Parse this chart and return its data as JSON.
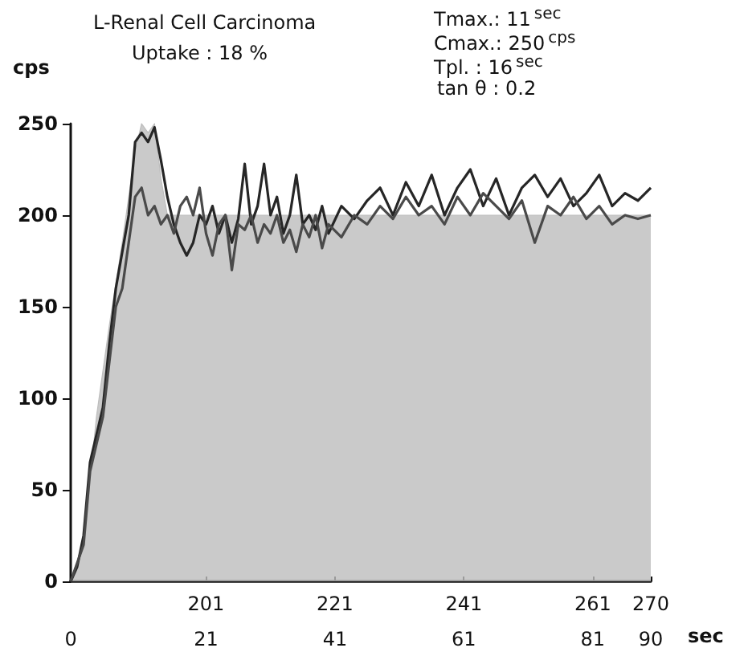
{
  "chart_data": {
    "type": "line",
    "title": "L-Renal Cell Carcinoma",
    "subtitle": "Uptake : 18 %",
    "ylabel": "cps",
    "xlabel": "sec",
    "annotations": [
      "Tmax.: 11$^{sec}$",
      "Cmax.: 250$^{cps}$",
      "Tpl. : 16$^{sec}$",
      "tan θ : 0.2"
    ],
    "xlim": [
      0,
      90
    ],
    "xticks": [
      0,
      21,
      41,
      61,
      81,
      90
    ],
    "x2lim": [
      180,
      270
    ],
    "x2ticks": [
      201,
      221,
      241,
      261,
      270
    ],
    "ylim": [
      0,
      250
    ],
    "yticks": [
      0,
      50,
      100,
      150,
      200,
      250
    ],
    "marker": "none",
    "line_style": "solid",
    "grid": false,
    "series": [
      {
        "color": "#262626",
        "x": [
          0,
          1,
          2,
          3,
          4,
          5,
          6,
          7,
          8,
          9,
          10,
          11,
          12,
          13,
          14,
          15,
          16,
          17,
          18,
          19,
          20,
          21,
          22,
          23,
          24,
          25,
          26,
          27,
          28,
          29,
          30,
          31,
          32,
          33,
          34,
          35,
          36,
          37,
          38,
          39,
          40,
          42,
          44,
          46,
          48,
          50,
          52,
          54,
          56,
          58,
          60,
          62,
          64,
          66,
          68,
          70,
          72,
          74,
          76,
          78,
          80,
          82,
          84,
          86,
          88,
          90
        ],
        "values": [
          0,
          8,
          25,
          65,
          80,
          95,
          130,
          160,
          180,
          200,
          240,
          245,
          240,
          248,
          230,
          210,
          195,
          185,
          178,
          185,
          200,
          195,
          205,
          190,
          200,
          185,
          198,
          228,
          195,
          205,
          228,
          200,
          210,
          190,
          200,
          222,
          195,
          200,
          192,
          205,
          190,
          205,
          198,
          208,
          215,
          200,
          218,
          205,
          222,
          200,
          215,
          225,
          205,
          220,
          200,
          215,
          222,
          210,
          220,
          205,
          212,
          222,
          205,
          212,
          208,
          215
        ]
      },
      {
        "color": "#4a4a4a",
        "x": [
          0,
          1,
          2,
          3,
          4,
          5,
          6,
          7,
          8,
          9,
          10,
          11,
          12,
          13,
          14,
          15,
          16,
          17,
          18,
          19,
          20,
          21,
          22,
          23,
          24,
          25,
          26,
          27,
          28,
          29,
          30,
          31,
          32,
          33,
          34,
          35,
          36,
          37,
          38,
          39,
          40,
          42,
          44,
          46,
          48,
          50,
          52,
          54,
          56,
          58,
          60,
          62,
          64,
          66,
          68,
          70,
          72,
          74,
          76,
          78,
          80,
          82,
          84,
          86,
          88,
          90
        ],
        "values": [
          0,
          10,
          20,
          60,
          75,
          90,
          120,
          150,
          160,
          185,
          210,
          215,
          200,
          205,
          195,
          200,
          190,
          205,
          210,
          200,
          215,
          190,
          178,
          195,
          200,
          170,
          195,
          192,
          200,
          185,
          195,
          190,
          200,
          185,
          192,
          180,
          195,
          188,
          200,
          182,
          195,
          188,
          200,
          195,
          205,
          198,
          210,
          200,
          205,
          195,
          210,
          200,
          212,
          205,
          198,
          208,
          185,
          205,
          200,
          210,
          198,
          205,
          195,
          200,
          198,
          200
        ]
      },
      {
        "type": "area",
        "color": "#bdbdbd",
        "x": [
          0,
          2,
          4,
          6,
          8,
          10,
          11,
          12,
          13,
          14,
          15,
          90
        ],
        "values": [
          0,
          20,
          90,
          140,
          185,
          235,
          250,
          245,
          250,
          220,
          200,
          200
        ]
      }
    ]
  }
}
